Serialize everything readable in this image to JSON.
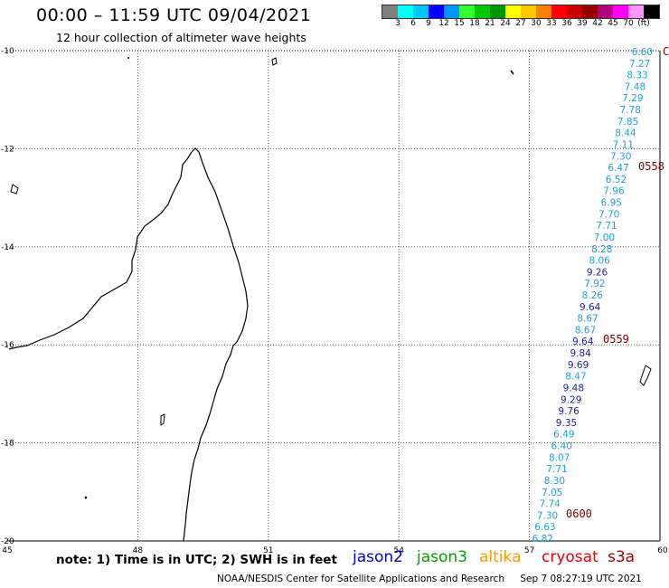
{
  "header": {
    "title": "00:00 – 11:59 UTC 09/04/2021",
    "subtitle": "12 hour collection of altimeter wave heights"
  },
  "colorbar": {
    "colors": [
      "#7f7f7f",
      "#00ffff",
      "#00c8ff",
      "#0000ff",
      "#0096ff",
      "#32ff32",
      "#00c800",
      "#009600",
      "#ffff00",
      "#ffc800",
      "#ff7f00",
      "#ff0000",
      "#c80000",
      "#960000",
      "#b4007f",
      "#ff00ff",
      "#ff96ff",
      "#000000"
    ],
    "labels": [
      "3",
      "6",
      "9",
      "12",
      "15",
      "18",
      "21",
      "24",
      "27",
      "30",
      "33",
      "36",
      "39",
      "42",
      "45",
      "70",
      "(ft)"
    ]
  },
  "map": {
    "lon_ticks": [
      "45",
      "48",
      "51",
      "54",
      "57",
      "60"
    ],
    "lat_ticks": [
      "-10",
      "-12",
      "-14",
      "-16",
      "-18",
      "-20"
    ],
    "track_colors": {
      "cyan": "#1ea0dc",
      "blue": "#1e1ea0",
      "dark_red": "#7a0000"
    },
    "observations": [
      {
        "v": "6.60",
        "c": "cyan"
      },
      {
        "v": "7.27",
        "c": "cyan"
      },
      {
        "v": "8.33",
        "c": "cyan"
      },
      {
        "v": "7.48",
        "c": "cyan"
      },
      {
        "v": "7.29",
        "c": "cyan"
      },
      {
        "v": "7.78",
        "c": "cyan"
      },
      {
        "v": "7.85",
        "c": "cyan"
      },
      {
        "v": "8.44",
        "c": "cyan"
      },
      {
        "v": "7.11",
        "c": "cyan"
      },
      {
        "v": "7.30",
        "c": "cyan"
      },
      {
        "v": "6.47",
        "c": "cyan"
      },
      {
        "v": "6.52",
        "c": "cyan"
      },
      {
        "v": "7.96",
        "c": "cyan"
      },
      {
        "v": "6.95",
        "c": "cyan"
      },
      {
        "v": "7.70",
        "c": "cyan"
      },
      {
        "v": "7.71",
        "c": "cyan"
      },
      {
        "v": "7.00",
        "c": "cyan"
      },
      {
        "v": "8.28",
        "c": "cyan"
      },
      {
        "v": "8.06",
        "c": "cyan"
      },
      {
        "v": "9.26",
        "c": "blue"
      },
      {
        "v": "7.92",
        "c": "cyan"
      },
      {
        "v": "8.26",
        "c": "cyan"
      },
      {
        "v": "9.64",
        "c": "blue"
      },
      {
        "v": "8.67",
        "c": "cyan"
      },
      {
        "v": "8.67",
        "c": "cyan"
      },
      {
        "v": "9.64",
        "c": "blue"
      },
      {
        "v": "9.84",
        "c": "blue"
      },
      {
        "v": "9.69",
        "c": "blue"
      },
      {
        "v": "8.47",
        "c": "cyan"
      },
      {
        "v": "9.48",
        "c": "blue"
      },
      {
        "v": "9.29",
        "c": "blue"
      },
      {
        "v": "9.76",
        "c": "blue"
      },
      {
        "v": "9.35",
        "c": "blue"
      },
      {
        "v": "6.49",
        "c": "cyan"
      },
      {
        "v": "6.40",
        "c": "cyan"
      },
      {
        "v": "8.07",
        "c": "cyan"
      },
      {
        "v": "7.71",
        "c": "cyan"
      },
      {
        "v": "8.30",
        "c": "cyan"
      },
      {
        "v": "7.05",
        "c": "cyan"
      },
      {
        "v": "7.74",
        "c": "cyan"
      },
      {
        "v": "7.30",
        "c": "cyan"
      },
      {
        "v": "6.63",
        "c": "cyan"
      },
      {
        "v": "6.82",
        "c": "cyan"
      }
    ],
    "time_labels": [
      "C",
      "0558",
      "0559",
      "0600"
    ]
  },
  "note": "note: 1) Time is in UTC; 2) SWH is in feet",
  "legend": [
    {
      "label": "jason2",
      "color": "#0000d0"
    },
    {
      "label": "jason3",
      "color": "#00a000"
    },
    {
      "label": "altika",
      "color": "#ff9900"
    },
    {
      "label": "cryosat",
      "color": "#ee0000"
    },
    {
      "label": "s3a",
      "color": "#aa0000"
    }
  ],
  "footer": {
    "credit": "NOAA/NESDIS Center for Satellite Applications and Research",
    "timestamp": "Sep  7 08:27:19 UTC 2021"
  }
}
